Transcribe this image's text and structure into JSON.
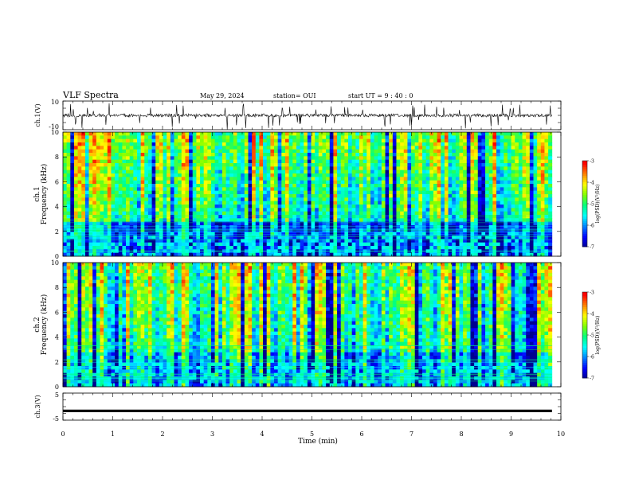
{
  "header": {
    "title": "VLF Spectra",
    "date": "May 29, 2024",
    "station": "station= OUI",
    "start": "start  UT =   9 : 40 : 0"
  },
  "chart_data": [
    {
      "type": "line",
      "panel": "ch1-voltage",
      "ylabel": "ch.1(V)",
      "ylim": [
        -10,
        10
      ],
      "yticks": [
        "10",
        "-10"
      ],
      "xlim": [
        0,
        10
      ],
      "trace_level": 0,
      "trace_color": "#000000"
    },
    {
      "type": "heatmap",
      "panel": "ch1-spectrogram",
      "ylabel_line1": "ch.1",
      "ylabel_line2": "Frequency (kHz)",
      "ylim": [
        0,
        10
      ],
      "yticks": [
        "0",
        "2",
        "4",
        "6",
        "8",
        "10"
      ],
      "xlim": [
        0,
        9.82
      ],
      "colorbar": {
        "label": "log(PSD)(V²/Hz)",
        "range": [
          -7,
          -3
        ],
        "ticks": [
          "-3",
          "-4",
          "-5",
          "-6",
          "-7"
        ]
      }
    },
    {
      "type": "heatmap",
      "panel": "ch2-spectrogram",
      "ylabel_line1": "ch.2",
      "ylabel_line2": "Frequency (kHz)",
      "ylim": [
        0,
        10
      ],
      "yticks": [
        "0",
        "2",
        "4",
        "6",
        "8",
        "10"
      ],
      "xlim": [
        0,
        9.82
      ],
      "colorbar": {
        "label": "log(PSD)(V²/Hz)",
        "range": [
          -7,
          -3
        ],
        "ticks": [
          "-3",
          "-4",
          "-5",
          "-6",
          "-7"
        ]
      }
    },
    {
      "type": "line",
      "panel": "ch3-voltage",
      "ylabel": "ch.3(V)",
      "ylim": [
        -5,
        5
      ],
      "yticks": [
        "5",
        "-5"
      ],
      "xlim": [
        0,
        10
      ],
      "trace_level": -1.6,
      "trace_color": "#000000"
    }
  ],
  "xaxis": {
    "label": "Time (min)",
    "ticks": [
      "0",
      "1",
      "2",
      "3",
      "4",
      "5",
      "6",
      "7",
      "8",
      "9",
      "10"
    ],
    "range": [
      0,
      10
    ]
  },
  "colors": [
    "#00008f",
    "#0000ff",
    "#0080ff",
    "#00ffff",
    "#00ff80",
    "#80ff00",
    "#ffff00",
    "#ff8000",
    "#ff0000",
    "#ffffff"
  ]
}
